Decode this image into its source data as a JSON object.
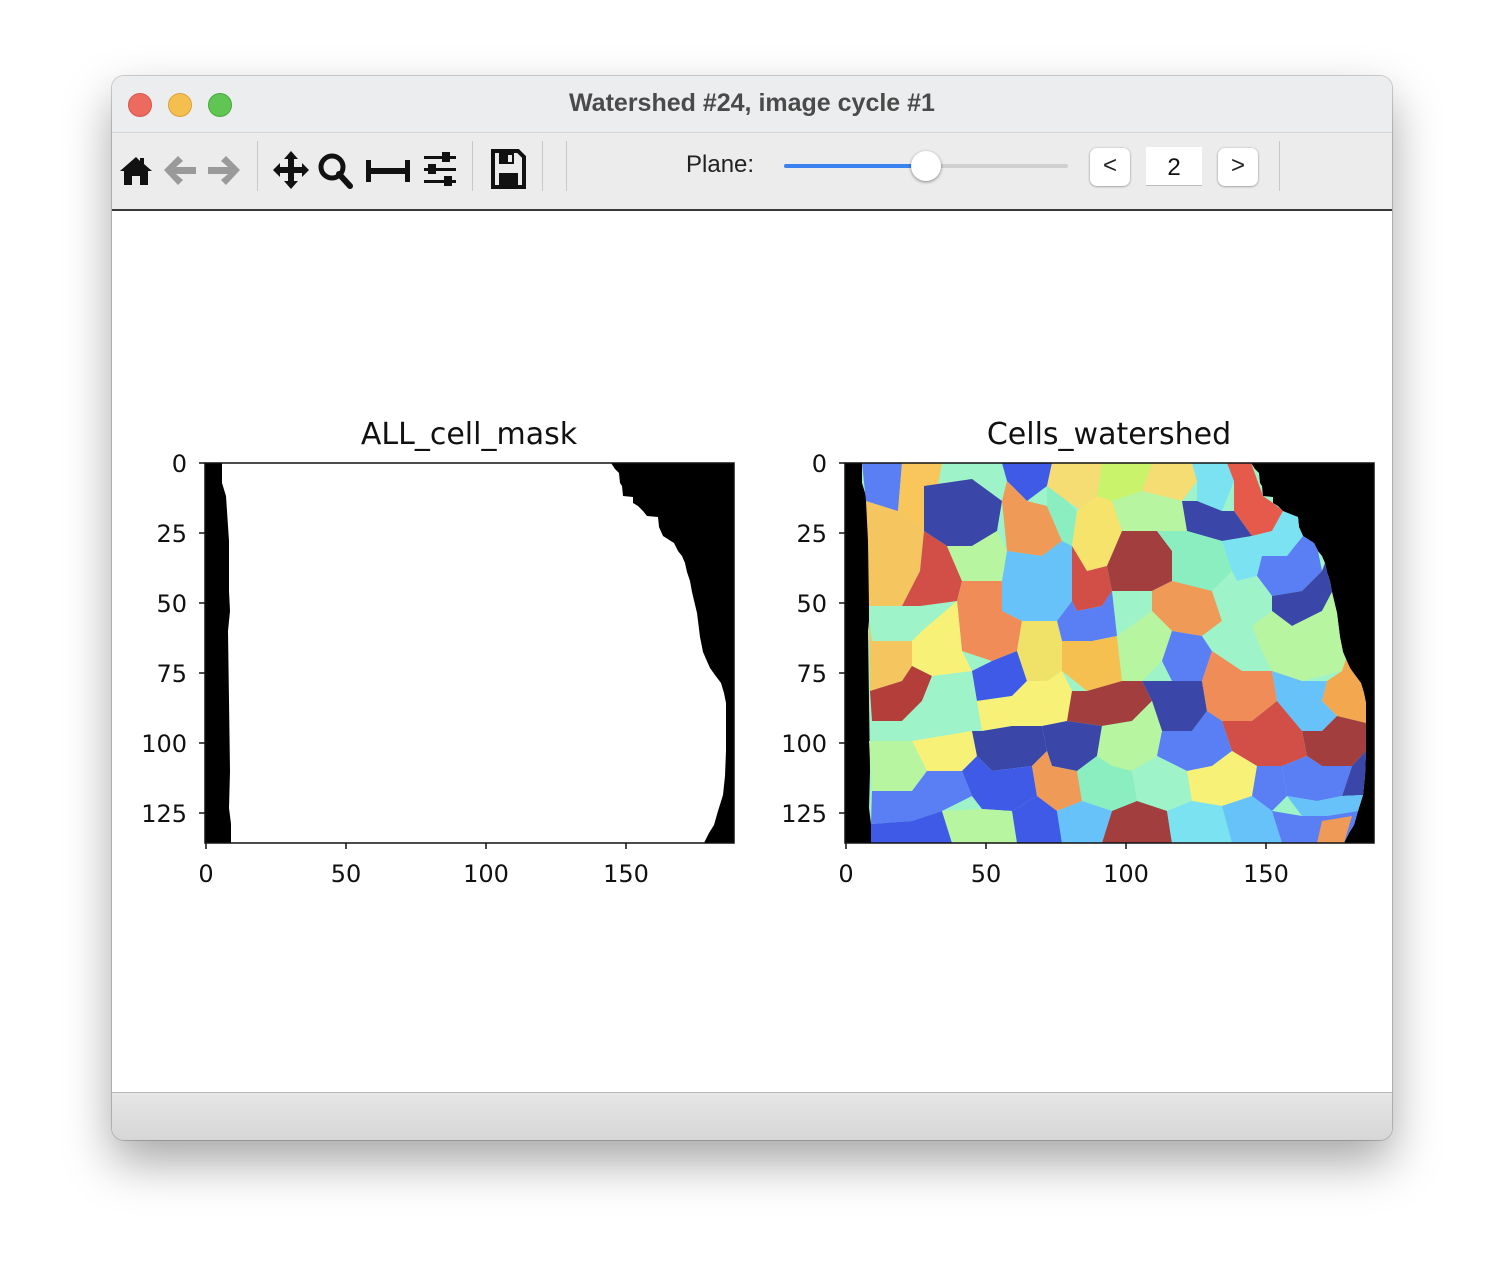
{
  "window": {
    "title": "Watershed #24, image cycle #1"
  },
  "toolbar": {
    "icons": [
      "home-icon",
      "back-arrow-icon",
      "forward-arrow-icon",
      "pan-icon",
      "zoom-icon",
      "subplots-icon",
      "configure-icon",
      "save-icon"
    ],
    "plane_label": "Plane:",
    "plane_value": "2",
    "prev_label": "<",
    "next_label": ">",
    "slider_fraction": 0.5
  },
  "colors": {
    "slider_accent": "#3a82f0",
    "mask_background": "#000000",
    "mask_foreground": "#ffffff"
  },
  "figures": [
    {
      "title": "ALL_cell_mask",
      "colormap": "gray",
      "x_ticks": [
        "0",
        "50",
        "100",
        "150"
      ],
      "y_ticks": [
        "0",
        "25",
        "50",
        "75",
        "100",
        "125"
      ],
      "xlim": [
        0,
        189
      ],
      "ylim": [
        136,
        0
      ]
    },
    {
      "title": "Cells_watershed",
      "colormap": "jet-like random labels",
      "x_ticks": [
        "0",
        "50",
        "100",
        "150"
      ],
      "y_ticks": [
        "0",
        "25",
        "50",
        "75",
        "100",
        "125"
      ],
      "xlim": [
        0,
        189
      ],
      "ylim": [
        136,
        0
      ]
    }
  ],
  "chart_data": [
    {
      "type": "heatmap",
      "title": "ALL_cell_mask",
      "x_range": [
        0,
        189
      ],
      "y_range": [
        136,
        0
      ],
      "values": "binary mask: white foreground from x≈8 to right boundary (≈146 at y=0, ≈165 at y=40, ≈173 at y=75, ≈186 at y=100, ≈175 at y=135); black elsewhere"
    },
    {
      "type": "heatmap",
      "title": "Cells_watershed",
      "x_range": [
        0,
        189
      ],
      "y_range": [
        136,
        0
      ],
      "values": "watershed labels: ~60 colored cell regions inside same mask, black background"
    }
  ]
}
